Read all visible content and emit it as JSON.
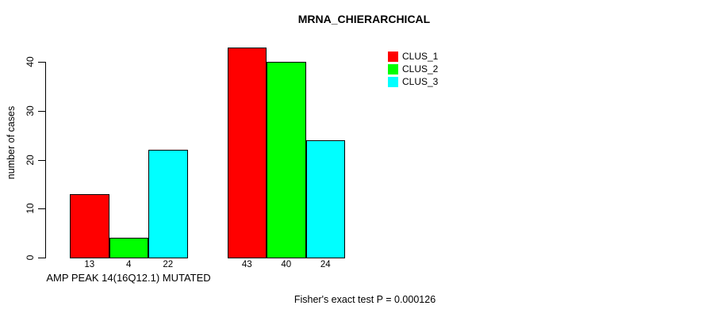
{
  "chart_data": {
    "type": "bar",
    "title": "MRNA_CHIERARCHICAL",
    "ylabel": "number of cases",
    "xlabel": "AMP PEAK 14(16Q12.1) MUTATED",
    "annotation": "Fisher's exact test P = 0.000126",
    "series": [
      {
        "name": "CLUS_1",
        "color": "#FF0000",
        "values": [
          13,
          43
        ]
      },
      {
        "name": "CLUS_2",
        "color": "#00FF00",
        "values": [
          4,
          40
        ]
      },
      {
        "name": "CLUS_3",
        "color": "#00FFFF",
        "values": [
          22,
          24
        ]
      }
    ],
    "groups": 2,
    "xlabel_under_group": 1,
    "bar_value_labels": [
      [
        13,
        4,
        22
      ],
      [
        43,
        40,
        24
      ]
    ],
    "yticks": [
      0,
      10,
      20,
      30,
      40
    ],
    "ylim": [
      0,
      43
    ],
    "grid": false,
    "legend": [
      "CLUS_1",
      "CLUS_2",
      "CLUS_3"
    ],
    "legend_position": "top-right"
  },
  "colors": {
    "background": "#FFFFFF",
    "text": "#000000",
    "axis": "#000000",
    "bar_border": "#000000",
    "clus_1": "#FF0000",
    "clus_2": "#00FF00",
    "clus_3": "#00FFFF"
  }
}
